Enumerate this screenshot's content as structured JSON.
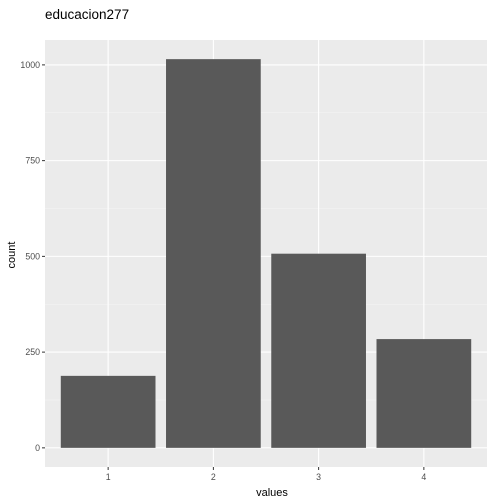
{
  "chart_data": {
    "type": "bar",
    "title": "educacion277",
    "xlabel": "values",
    "ylabel": "count",
    "categories": [
      "1",
      "2",
      "3",
      "4"
    ],
    "values": [
      188,
      1015,
      507,
      284
    ],
    "ylim": [
      -50,
      1065
    ],
    "yticks": [
      0,
      250,
      500,
      750,
      1000
    ],
    "grid": true,
    "colors": {
      "bar": "#595959",
      "panel": "#ebebeb",
      "grid_major": "#ffffff",
      "background": "#ffffff"
    }
  }
}
